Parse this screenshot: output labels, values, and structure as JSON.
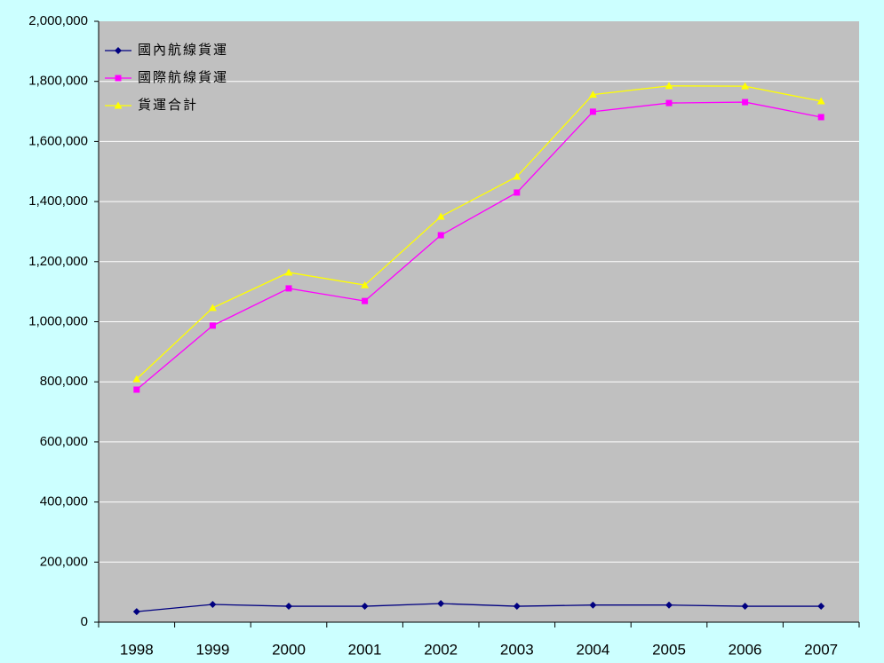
{
  "chart_data": {
    "type": "line",
    "categories": [
      "1998",
      "1999",
      "2000",
      "2001",
      "2002",
      "2003",
      "2004",
      "2005",
      "2006",
      "2007"
    ],
    "series": [
      {
        "name": "國內航線貨運",
        "color": "#000080",
        "marker": "diamond",
        "values": [
          35000,
          59000,
          53000,
          53000,
          62000,
          53000,
          57000,
          57000,
          53000,
          53000
        ]
      },
      {
        "name": "國際航線貨運",
        "color": "#ff00ff",
        "marker": "square",
        "values": [
          774000,
          987000,
          1111000,
          1069000,
          1288000,
          1430000,
          1699000,
          1728000,
          1731000,
          1681000
        ]
      },
      {
        "name": "貨運合計",
        "color": "#ffff00",
        "marker": "triangle",
        "values": [
          809000,
          1046000,
          1164000,
          1122000,
          1350000,
          1483000,
          1756000,
          1785000,
          1784000,
          1734000
        ]
      }
    ],
    "ylim": [
      0,
      2000000
    ],
    "yticks": [
      0,
      {
        "value": 200000,
        "label": "200,000"
      },
      {
        "value": 400000,
        "label": "400,000"
      },
      {
        "value": 600000,
        "label": "600,000"
      },
      {
        "value": 800000,
        "label": "800,000"
      },
      {
        "value": 1000000,
        "label": "1,000,000"
      },
      {
        "value": 1200000,
        "label": "1,200,000"
      },
      {
        "value": 1400000,
        "label": "1,400,000"
      },
      {
        "value": 1600000,
        "label": "1,600,000"
      },
      {
        "value": 1800000,
        "label": "1,800,000"
      },
      {
        "value": 2000000,
        "label": "2,000,000"
      }
    ],
    "grid": true,
    "legend": "top-left"
  }
}
